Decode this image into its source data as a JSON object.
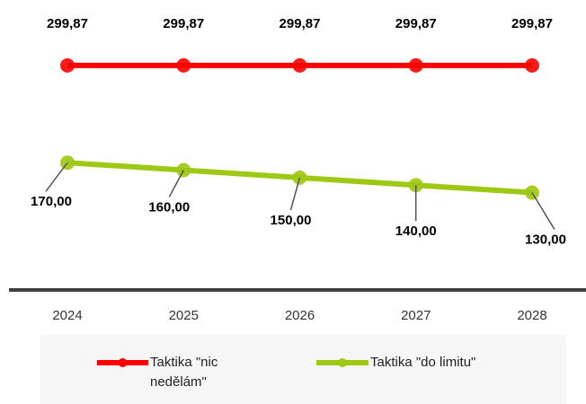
{
  "chart_data": {
    "type": "line",
    "categories": [
      "2024",
      "2025",
      "2026",
      "2027",
      "2028"
    ],
    "series": [
      {
        "name": "Taktika \"nic nedělám\"",
        "color": "#ff0000",
        "values": [
          299.87,
          299.87,
          299.87,
          299.87,
          299.87
        ],
        "value_labels": [
          "299,87",
          "299,87",
          "299,87",
          "299,87",
          "299,87"
        ]
      },
      {
        "name": "Taktika \"do limitu\"",
        "color": "#9dc814",
        "values": [
          170,
          160,
          150,
          140,
          130
        ],
        "value_labels": [
          "170,00",
          "160,00",
          "150,00",
          "140,00",
          "130,00"
        ]
      }
    ],
    "ylim": [
      0,
      380
    ],
    "legend": "bottom"
  }
}
